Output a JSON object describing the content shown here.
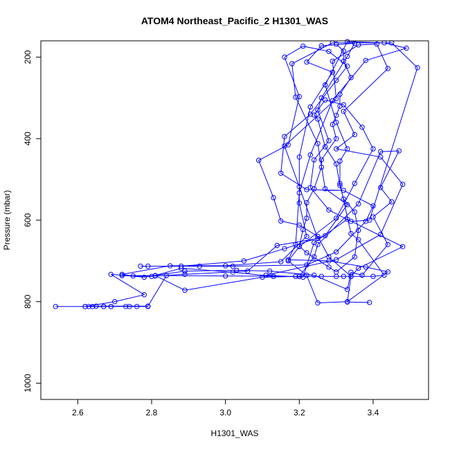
{
  "chart_data": {
    "type": "line",
    "title": "ATOM4 Northeast_Pacific_2 H1301_WAS",
    "xlabel": "H1301_WAS",
    "ylabel": "Pressure (mbar)",
    "xlim": [
      2.5,
      3.55
    ],
    "ylim": [
      1040,
      160
    ],
    "y_reversed": true,
    "x_ticks": [
      2.6,
      2.8,
      3.0,
      3.2,
      3.4
    ],
    "x_tick_labels": [
      "2.6",
      "2.8",
      "3.0",
      "3.2",
      "3.4"
    ],
    "y_ticks": [
      200,
      400,
      600,
      800,
      1000
    ],
    "y_tick_labels": [
      "200",
      "400",
      "600",
      "800",
      "1000"
    ],
    "grid": false,
    "marker": "open-circle",
    "colors": {
      "series": "#0000ff",
      "axes": "#000000",
      "background": "#ffffff"
    },
    "series": [
      {
        "points": [
          [
            3.39,
            802
          ],
          [
            3.33,
            801
          ],
          [
            3.34,
            738
          ],
          [
            3.36,
            718
          ],
          [
            3.48,
            665
          ],
          [
            3.33,
            598
          ],
          [
            3.24,
            655
          ],
          [
            3.21,
            740
          ],
          [
            3.11,
            735
          ],
          [
            3.3,
            697
          ],
          [
            3.42,
            635
          ],
          [
            3.48,
            512
          ],
          [
            3.42,
            445
          ],
          [
            3.3,
            425
          ],
          [
            3.35,
            390
          ],
          [
            3.32,
            333
          ],
          [
            3.44,
            228
          ],
          [
            3.41,
            168
          ],
          [
            3.36,
            170
          ],
          [
            3.29,
            210
          ],
          [
            3.3,
            302
          ],
          [
            3.16,
            418
          ],
          [
            3.2,
            518
          ],
          [
            3.25,
            645
          ],
          [
            3.14,
            662
          ],
          [
            3.06,
            725
          ],
          [
            2.89,
            733
          ],
          [
            2.81,
            737
          ],
          [
            2.75,
            737
          ],
          [
            2.72,
            733
          ],
          [
            2.85,
            712
          ],
          [
            3.0,
            712
          ],
          [
            3.15,
            702
          ],
          [
            3.22,
            640
          ],
          [
            3.2,
            558
          ],
          [
            3.2,
            445
          ],
          [
            3.23,
            322
          ],
          [
            3.29,
            237
          ],
          [
            3.22,
            212
          ],
          [
            3.26,
            172
          ],
          [
            3.35,
            166
          ],
          [
            3.33,
            198
          ],
          [
            3.26,
            300
          ],
          [
            3.25,
            330
          ],
          [
            3.28,
            405
          ],
          [
            3.24,
            452
          ],
          [
            3.23,
            520
          ],
          [
            3.28,
            575
          ],
          [
            3.34,
            603
          ],
          [
            3.39,
            600
          ],
          [
            3.52,
            226
          ],
          [
            3.45,
            165
          ],
          [
            3.29,
            165
          ],
          [
            3.18,
            216
          ],
          [
            3.19,
            298
          ],
          [
            3.25,
            412
          ],
          [
            3.27,
            523
          ],
          [
            3.33,
            562
          ],
          [
            3.27,
            638
          ],
          [
            3.16,
            670
          ],
          [
            3.05,
            700
          ],
          [
            2.88,
            713
          ],
          [
            2.77,
            713
          ],
          [
            2.79,
            713
          ],
          [
            2.93,
            713
          ],
          [
            3.02,
            713
          ],
          [
            3.22,
            710
          ],
          [
            3.3,
            678
          ],
          [
            3.38,
            603
          ],
          [
            3.4,
            565
          ],
          [
            3.32,
            527
          ],
          [
            3.22,
            525
          ],
          [
            3.15,
            485
          ],
          [
            3.16,
            395
          ],
          [
            3.23,
            340
          ],
          [
            3.3,
            257
          ],
          [
            3.33,
            222
          ],
          [
            3.28,
            186
          ],
          [
            3.21,
            173
          ],
          [
            3.16,
            200
          ],
          [
            3.2,
            297
          ],
          [
            3.17,
            415
          ],
          [
            3.09,
            453
          ],
          [
            3.13,
            545
          ],
          [
            3.15,
            602
          ],
          [
            3.2,
            612
          ],
          [
            3.25,
            640
          ],
          [
            3.28,
            690
          ],
          [
            3.34,
            738
          ],
          [
            3.3,
            738
          ],
          [
            3.26,
            738
          ],
          [
            3.2,
            738
          ],
          [
            3.13,
            738
          ],
          [
            3.02,
            728
          ],
          [
            2.88,
            718
          ],
          [
            2.8,
            738
          ],
          [
            2.72,
            736
          ],
          [
            2.81,
            736
          ],
          [
            2.89,
            772
          ],
          [
            3.1,
            740
          ],
          [
            3.2,
            738
          ],
          [
            3.24,
            690
          ],
          [
            3.25,
            660
          ],
          [
            3.36,
            560
          ],
          [
            3.42,
            432
          ],
          [
            3.47,
            430
          ],
          [
            3.42,
            520
          ],
          [
            3.45,
            555
          ],
          [
            3.4,
            592
          ],
          [
            3.44,
            660
          ],
          [
            3.37,
            735
          ],
          [
            3.34,
            728
          ],
          [
            3.33,
            770
          ],
          [
            3.24,
            735
          ],
          [
            3.12,
            725
          ],
          [
            3.03,
            723
          ],
          [
            2.89,
            725
          ],
          [
            2.78,
            740
          ],
          [
            2.69,
            733
          ],
          [
            2.78,
            783
          ],
          [
            2.7,
            800
          ],
          [
            2.62,
            812
          ],
          [
            2.54,
            812
          ],
          [
            2.67,
            812
          ],
          [
            2.63,
            812
          ],
          [
            2.69,
            812
          ],
          [
            2.76,
            812
          ],
          [
            2.79,
            812
          ],
          [
            2.74,
            812
          ],
          [
            2.73,
            812
          ],
          [
            2.69,
            812
          ],
          [
            2.67,
            812
          ],
          [
            2.64,
            812
          ],
          [
            2.62,
            812
          ],
          [
            2.65,
            811
          ],
          [
            2.79,
            811
          ],
          [
            2.84,
            736
          ],
          [
            3.0,
            737
          ],
          [
            3.19,
            738
          ],
          [
            3.32,
            738
          ],
          [
            3.4,
            738
          ],
          [
            3.43,
            735
          ],
          [
            3.36,
            648
          ],
          [
            3.34,
            633
          ],
          [
            3.31,
            510
          ],
          [
            3.31,
            455
          ],
          [
            3.33,
            425
          ],
          [
            3.3,
            360
          ],
          [
            3.27,
            268
          ],
          [
            3.33,
            162
          ],
          [
            3.43,
            165
          ],
          [
            3.49,
            178
          ],
          [
            3.38,
            208
          ],
          [
            3.29,
            307
          ],
          [
            3.23,
            440
          ],
          [
            3.2,
            533
          ],
          [
            3.19,
            660
          ],
          [
            3.17,
            697
          ],
          [
            3.28,
            700
          ],
          [
            3.38,
            715
          ],
          [
            3.44,
            727
          ],
          [
            3.33,
            800
          ],
          [
            3.25,
            803
          ],
          [
            3.22,
            735
          ],
          [
            3.17,
            700
          ],
          [
            3.2,
            665
          ],
          [
            3.3,
            595
          ],
          [
            3.35,
            510
          ],
          [
            3.4,
            425
          ],
          [
            3.37,
            372
          ],
          [
            3.32,
            317
          ],
          [
            3.27,
            305
          ],
          [
            3.24,
            342
          ],
          [
            3.25,
            352
          ],
          [
            3.27,
            420
          ],
          [
            3.3,
            462
          ],
          [
            3.31,
            515
          ],
          [
            3.32,
            548
          ],
          [
            3.35,
            580
          ],
          [
            3.36,
            625
          ],
          [
            3.35,
            690
          ],
          [
            3.3,
            727
          ],
          [
            3.28,
            715
          ],
          [
            3.22,
            680
          ],
          [
            3.2,
            664
          ],
          [
            3.21,
            623
          ],
          [
            3.22,
            595
          ],
          [
            3.22,
            557
          ],
          [
            3.24,
            523
          ],
          [
            3.26,
            470
          ],
          [
            3.26,
            452
          ],
          [
            3.3,
            400
          ],
          [
            3.29,
            365
          ],
          [
            3.3,
            343
          ],
          [
            3.31,
            320
          ],
          [
            3.31,
            291
          ],
          [
            3.34,
            250
          ],
          [
            3.32,
            210
          ],
          [
            3.32,
            185
          ],
          [
            3.3,
            168
          ]
        ]
      }
    ]
  }
}
